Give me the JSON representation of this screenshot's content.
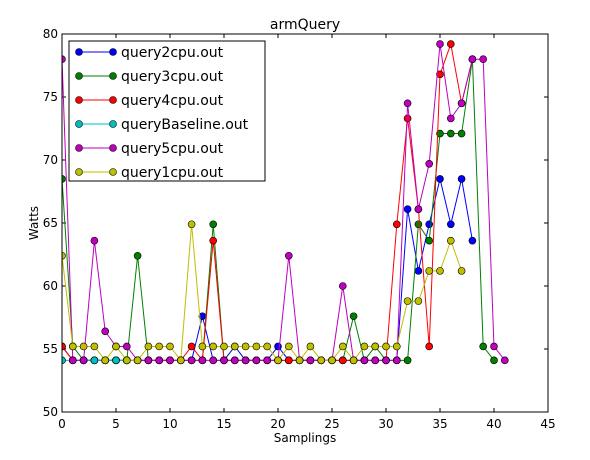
{
  "chart_data": {
    "type": "line",
    "title": "armQuery",
    "xlabel": "Samplings",
    "ylabel": "Watts",
    "xlim": [
      0,
      45
    ],
    "ylim": [
      50,
      80
    ],
    "x_ticks": [
      0,
      5,
      10,
      15,
      20,
      25,
      30,
      35,
      40,
      45
    ],
    "y_ticks": [
      50,
      55,
      60,
      65,
      70,
      75,
      80
    ],
    "grid": false,
    "legend_position": "top-left",
    "series": [
      {
        "name": "query2cpu.out",
        "color": "#0000ff",
        "x": [
          0,
          1,
          2,
          3,
          4,
          5,
          6,
          7,
          8,
          9,
          10,
          11,
          12,
          13,
          14,
          15,
          16,
          17,
          18,
          19,
          20,
          21,
          22,
          23,
          24,
          25,
          26,
          27,
          28,
          29,
          30,
          31,
          32,
          33,
          34,
          35,
          36,
          37,
          38
        ],
        "y": [
          55.2,
          54.1,
          54.1,
          54.1,
          54.1,
          54.1,
          54.1,
          54.1,
          54.1,
          54.1,
          54.1,
          54.1,
          54.1,
          57.6,
          54.1,
          54.1,
          55.2,
          54.1,
          54.1,
          54.1,
          55.2,
          54.1,
          54.1,
          54.1,
          54.1,
          54.1,
          54.1,
          54.1,
          54.1,
          54.1,
          54.1,
          54.1,
          66.1,
          61.2,
          64.9,
          68.5,
          64.9,
          68.5,
          63.6
        ]
      },
      {
        "name": "query3cpu.out",
        "color": "#008000",
        "x": [
          0,
          1,
          2,
          3,
          4,
          5,
          6,
          7,
          8,
          9,
          10,
          11,
          12,
          13,
          14,
          15,
          16,
          17,
          18,
          19,
          20,
          21,
          22,
          23,
          24,
          25,
          26,
          27,
          28,
          29,
          30,
          31,
          32,
          33,
          34,
          35,
          36,
          37,
          38,
          39,
          40
        ],
        "y": [
          68.5,
          55.2,
          54.1,
          54.1,
          54.1,
          54.1,
          54.1,
          62.4,
          54.1,
          54.1,
          54.1,
          54.1,
          54.1,
          54.1,
          64.9,
          54.1,
          54.1,
          54.1,
          54.1,
          54.1,
          54.1,
          54.1,
          54.1,
          54.1,
          54.1,
          54.1,
          54.1,
          57.6,
          54.1,
          55.2,
          54.1,
          54.1,
          54.1,
          64.9,
          63.6,
          72.1,
          72.1,
          72.1,
          78.0,
          55.2,
          54.1
        ]
      },
      {
        "name": "query4cpu.out",
        "color": "#ff0000",
        "x": [
          0,
          1,
          2,
          3,
          4,
          5,
          6,
          7,
          8,
          9,
          10,
          11,
          12,
          13,
          14,
          15,
          16,
          17,
          18,
          19,
          20,
          21,
          22,
          23,
          24,
          25,
          26,
          27,
          28,
          29,
          30,
          31,
          32,
          33,
          34,
          35,
          36,
          37,
          38
        ],
        "y": [
          55.2,
          54.1,
          54.1,
          54.1,
          54.1,
          54.1,
          54.1,
          54.1,
          54.1,
          54.1,
          54.1,
          54.1,
          55.2,
          54.1,
          63.6,
          54.1,
          54.1,
          54.1,
          54.1,
          54.1,
          54.1,
          54.1,
          54.1,
          54.1,
          54.1,
          54.1,
          54.1,
          54.1,
          54.1,
          54.1,
          54.1,
          64.9,
          73.3,
          66.1,
          55.2,
          76.8,
          79.2,
          74.5,
          78.0
        ]
      },
      {
        "name": "queryBaseline.out",
        "color": "#00bfbf",
        "x": [
          0,
          1,
          2,
          3,
          4,
          5,
          6
        ],
        "y": [
          54.1,
          54.1,
          54.1,
          54.1,
          54.1,
          54.1,
          54.1
        ]
      },
      {
        "name": "query5cpu.out",
        "color": "#bf00bf",
        "x": [
          0,
          1,
          2,
          3,
          4,
          5,
          6,
          7,
          8,
          9,
          10,
          11,
          12,
          13,
          14,
          15,
          16,
          17,
          18,
          19,
          20,
          21,
          22,
          23,
          24,
          25,
          26,
          27,
          28,
          29,
          30,
          31,
          32,
          33,
          34,
          35,
          36,
          37,
          38,
          39,
          40,
          41
        ],
        "y": [
          78.0,
          54.1,
          54.1,
          63.6,
          56.4,
          55.2,
          55.2,
          54.1,
          54.1,
          54.1,
          54.1,
          54.1,
          54.1,
          54.1,
          54.1,
          54.1,
          54.1,
          54.1,
          54.1,
          54.1,
          54.1,
          62.4,
          54.1,
          54.1,
          54.1,
          54.1,
          60.0,
          54.1,
          54.1,
          54.1,
          54.1,
          54.1,
          74.5,
          66.1,
          69.7,
          79.2,
          73.3,
          74.5,
          78.0,
          78.0,
          55.2,
          54.1
        ]
      },
      {
        "name": "query1cpu.out",
        "color": "#bfbf00",
        "x": [
          0,
          1,
          2,
          3,
          4,
          5,
          6,
          7,
          8,
          9,
          10,
          11,
          12,
          13,
          14,
          15,
          16,
          17,
          18,
          19,
          20,
          21,
          22,
          23,
          24,
          25,
          26,
          27,
          28,
          29,
          30,
          31,
          32,
          33,
          34,
          35,
          36,
          37
        ],
        "y": [
          62.4,
          55.2,
          55.2,
          55.2,
          54.1,
          55.2,
          54.1,
          54.1,
          55.2,
          55.2,
          55.2,
          54.1,
          64.9,
          55.2,
          55.2,
          55.2,
          55.2,
          55.2,
          55.2,
          55.2,
          54.1,
          55.2,
          54.1,
          55.2,
          54.1,
          54.1,
          55.2,
          54.1,
          55.2,
          55.2,
          55.2,
          55.2,
          58.8,
          58.8,
          61.2,
          61.2,
          63.6,
          61.2
        ]
      }
    ]
  }
}
